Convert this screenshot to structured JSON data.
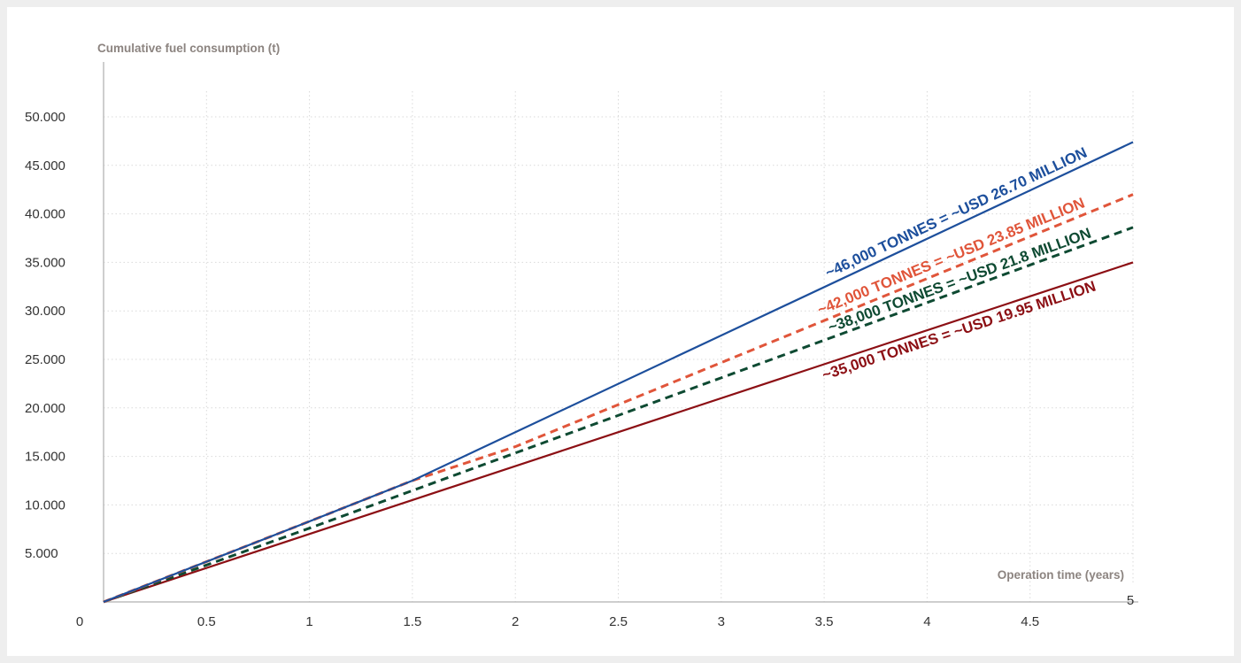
{
  "chart_data": {
    "type": "line",
    "title": "",
    "ylabel": "Cumulative fuel consumption (t)",
    "xlabel": "Operation time (years)",
    "xlim": [
      0,
      5
    ],
    "ylim": [
      0,
      50000
    ],
    "x_ticks": [
      0.5,
      1,
      1.5,
      2,
      2.5,
      3,
      3.5,
      4,
      4.5,
      5
    ],
    "x_tick_labels": [
      "0.5",
      "1",
      "1.5",
      "2",
      "2.5",
      "3",
      "3.5",
      "4",
      "4.5",
      "5"
    ],
    "y_ticks": [
      5000,
      10000,
      15000,
      20000,
      25000,
      30000,
      35000,
      40000,
      45000,
      50000
    ],
    "y_tick_labels": [
      "5.000",
      "10.000",
      "15.000",
      "20.000",
      "25.000",
      "30.000",
      "35.000",
      "40.000",
      "45.000",
      "50.000"
    ],
    "origin_label": "0",
    "grid": true,
    "series": [
      {
        "label": "~46,000 TONNES = ~USD 26.70 MILLION",
        "color": "#1d4f9c",
        "style": "solid",
        "x": [
          0,
          1,
          1.5,
          2,
          5
        ],
        "y": [
          0,
          8300,
          12500,
          17500,
          47400
        ]
      },
      {
        "label": "~42,000 TONNES = ~USD 23.85 MILLION",
        "color": "#e0553a",
        "style": "dashed",
        "x": [
          0,
          1,
          1.5,
          2,
          5
        ],
        "y": [
          0,
          8300,
          12500,
          16000,
          42000
        ]
      },
      {
        "label": "~38,000 TONNES = ~USD 21.8  MILLION",
        "color": "#0e4a32",
        "style": "dashed",
        "x": [
          0,
          1,
          5
        ],
        "y": [
          0,
          7600,
          38600
        ]
      },
      {
        "label": "~35,000 TONNES = ~USD 19.95 MILLION",
        "color": "#8c0f14",
        "style": "solid",
        "x": [
          0,
          5
        ],
        "y": [
          0,
          35000
        ]
      }
    ]
  }
}
